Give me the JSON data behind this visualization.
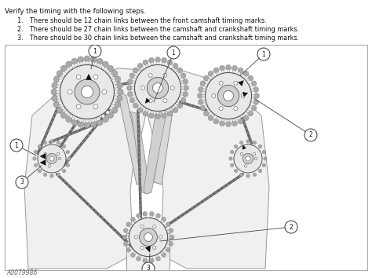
{
  "title_text": "Verify the timing with the following steps.",
  "steps": [
    "There should be 12 chain links between the front camshaft timing marks.",
    "There should be 27 chain links between the camshaft and crankshaft timing marks.",
    "There should be 30 chain links between the camshaft and crankshaft timing marks."
  ],
  "bg_color": "#ffffff",
  "diagram_border_color": "#aaaaaa",
  "text_color": "#111111",
  "gear_color": "#e8e8e8",
  "gear_edge_color": "#555555",
  "chain_color": "#666666",
  "arrow_color": "#111111",
  "ref_code": "A0079986",
  "diagram_bg": "#ffffff",
  "block_color": "#eeeeee",
  "block_edge": "#888888"
}
